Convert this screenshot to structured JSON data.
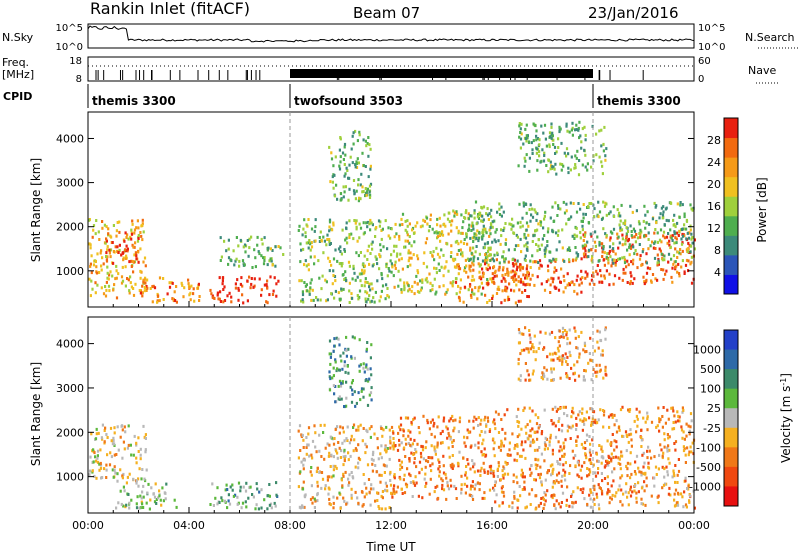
{
  "header": {
    "station": "Rankin Inlet (fitACF)",
    "beam": "Beam 07",
    "date": "23/Jan/2016"
  },
  "noise_panel": {
    "left_label": "N.Sky",
    "right_label": "N.Search",
    "left_ticks": [
      "10^5",
      "10^0"
    ],
    "right_ticks": [
      "10^5",
      "10^0"
    ]
  },
  "freq_panel": {
    "left_label": "Freq.",
    "left_unit": "[MHz]",
    "right_label": "Nave",
    "left_ticks": [
      "18",
      "8"
    ],
    "right_ticks": [
      "60",
      "0"
    ]
  },
  "cpid_panel": {
    "label": "CPID",
    "segments": [
      {
        "name": "themis 3300",
        "start_hour": 0.0,
        "end_hour": 8.0
      },
      {
        "name": "twofsound 3503",
        "start_hour": 8.0,
        "end_hour": 20.0
      },
      {
        "name": "themis 3300",
        "start_hour": 20.0,
        "end_hour": 24.0
      }
    ]
  },
  "chart_data": [
    {
      "type": "heatmap",
      "quantity": "power",
      "ylabel": "Slant Range [km]",
      "ylim": [
        180,
        4600
      ],
      "yticks": [
        1000,
        2000,
        3000,
        4000
      ],
      "xlim_hours": [
        0,
        24
      ],
      "colorbar": {
        "label": "Power [dB]",
        "range": [
          0,
          32
        ],
        "tick_values": [
          4,
          8,
          12,
          16,
          20,
          24,
          28
        ],
        "tick_labels": [
          "4",
          "8",
          "12",
          "16",
          "20",
          "24",
          "28"
        ],
        "colors": [
          "#1010e6",
          "#2b55b8",
          "#3c8a7a",
          "#4fae4f",
          "#9fd03c",
          "#f0c020",
          "#f59a18",
          "#f26a10",
          "#e82010"
        ]
      },
      "echo_regions": [
        {
          "t0": 0.0,
          "t1": 2.3,
          "r0": 400,
          "r1": 2200,
          "level": 0.65
        },
        {
          "t0": 0.6,
          "t1": 2.0,
          "r0": 1200,
          "r1": 1900,
          "level": 0.9
        },
        {
          "t0": 2.0,
          "t1": 4.5,
          "r0": 300,
          "r1": 900,
          "level": 0.75
        },
        {
          "t0": 4.8,
          "t1": 7.5,
          "r0": 300,
          "r1": 900,
          "level": 0.95
        },
        {
          "t0": 5.2,
          "t1": 7.7,
          "r0": 1100,
          "r1": 1800,
          "level": 0.4
        },
        {
          "t0": 8.3,
          "t1": 12.0,
          "r0": 300,
          "r1": 2200,
          "level": 0.45
        },
        {
          "t0": 9.5,
          "t1": 11.2,
          "r0": 2600,
          "r1": 4200,
          "level": 0.4
        },
        {
          "t0": 12.0,
          "t1": 16.0,
          "r0": 500,
          "r1": 2400,
          "level": 0.55
        },
        {
          "t0": 14.5,
          "t1": 17.5,
          "r0": 300,
          "r1": 1200,
          "level": 0.8
        },
        {
          "t0": 16.0,
          "t1": 19.5,
          "r0": 500,
          "r1": 1300,
          "level": 0.85
        },
        {
          "t0": 19.5,
          "t1": 24.0,
          "r0": 700,
          "r1": 1900,
          "level": 0.85
        },
        {
          "t0": 15.0,
          "t1": 24.0,
          "r0": 1200,
          "r1": 2600,
          "level": 0.4
        },
        {
          "t0": 17.0,
          "t1": 20.5,
          "r0": 3200,
          "r1": 4400,
          "level": 0.4
        }
      ]
    },
    {
      "type": "heatmap",
      "quantity": "velocity",
      "ylabel": "Slant Range [km]",
      "ylim": [
        180,
        4600
      ],
      "yticks": [
        1000,
        2000,
        3000,
        4000
      ],
      "xlim_hours": [
        0,
        24
      ],
      "xticks_hours": [
        0,
        4,
        8,
        12,
        16,
        20,
        24
      ],
      "xtick_labels": [
        "00:00",
        "04:00",
        "08:00",
        "12:00",
        "16:00",
        "20:00",
        "00:00"
      ],
      "xlabel": "Time UT",
      "colorbar": {
        "label": "Velocity [m s^-1]",
        "tick_labels": [
          "1000",
          "500",
          "100",
          "25",
          "-25",
          "-100",
          "-500",
          "-1000"
        ],
        "colors": [
          "#2340c8",
          "#2e6aa8",
          "#3c8a6a",
          "#5cb83c",
          "#b8b8b8",
          "#f5b020",
          "#f07818",
          "#f04810",
          "#e81010"
        ]
      },
      "echo_regions": [
        {
          "t0": 0.0,
          "t1": 2.3,
          "r0": 900,
          "r1": 2200,
          "level": 0.55
        },
        {
          "t0": 1.0,
          "t1": 3.5,
          "r0": 300,
          "r1": 900,
          "level": 0.42
        },
        {
          "t0": 4.8,
          "t1": 7.5,
          "r0": 300,
          "r1": 900,
          "level": 0.35
        },
        {
          "t0": 8.3,
          "t1": 12.0,
          "r0": 300,
          "r1": 2200,
          "level": 0.6
        },
        {
          "t0": 9.5,
          "t1": 11.2,
          "r0": 2600,
          "r1": 4200,
          "level": 0.3
        },
        {
          "t0": 12.0,
          "t1": 16.0,
          "r0": 500,
          "r1": 2400,
          "level": 0.7
        },
        {
          "t0": 16.0,
          "t1": 24.0,
          "r0": 300,
          "r1": 2600,
          "level": 0.68
        },
        {
          "t0": 17.0,
          "t1": 20.5,
          "r0": 3200,
          "r1": 4400,
          "level": 0.66
        }
      ]
    }
  ]
}
